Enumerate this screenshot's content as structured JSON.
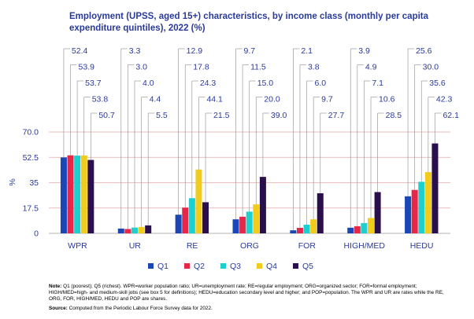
{
  "title": "Employment (UPSS, aged 15+) characteristics, by income class (monthly per capita expenditure quintiles), 2022 (%)",
  "note_label": "Note:",
  "note_text": "Q1 (poorest); Q5 (richest). WPR=worker population ratio; UR=unemployment rate; RE=regular employment; ORG=organized sector; FOR=formal employment; HIGH/MED=high- and medium-skill jobs (see box 5 for definitions); HEDU=education secondary level and higher; and POP=population. The WPR and UR are rates while the RE, ORG, FOR, HIGH/MED, HEDU and POP are shares.",
  "source_label": "Source:",
  "source_text": "Computed from the Periodic Labour Force Survey data for 2022.",
  "colors": {
    "title": "#2a3a9c",
    "axis_text": "#2a3a9c",
    "gridline": "#e6a8a8",
    "Q1": "#1b46b5",
    "Q2": "#e5284a",
    "Q3": "#1ecfcf",
    "Q4": "#f2cc1c",
    "Q5": "#2a0f4d"
  },
  "chart_data": {
    "type": "bar",
    "ylabel": "%",
    "ylim": [
      0,
      70
    ],
    "yticks": [
      "0",
      "17.5",
      "35",
      "52.5",
      "70.0"
    ],
    "grid": true,
    "legend_position": "bottom",
    "categories": [
      "WPR",
      "UR",
      "RE",
      "ORG",
      "FOR",
      "HIGH/MED",
      "HEDU"
    ],
    "series": [
      {
        "name": "Q1",
        "values": [
          52.4,
          3.3,
          12.9,
          9.7,
          2.1,
          3.9,
          25.6
        ]
      },
      {
        "name": "Q2",
        "values": [
          53.9,
          3.0,
          17.8,
          11.5,
          3.8,
          4.9,
          30.0
        ]
      },
      {
        "name": "Q3",
        "values": [
          53.7,
          4.0,
          24.3,
          15.0,
          6.0,
          7.1,
          35.6
        ]
      },
      {
        "name": "Q4",
        "values": [
          53.8,
          4.4,
          44.1,
          20.0,
          9.7,
          10.6,
          42.3
        ]
      },
      {
        "name": "Q5",
        "values": [
          50.7,
          5.5,
          21.5,
          39.0,
          27.7,
          28.5,
          62.1
        ]
      }
    ]
  }
}
